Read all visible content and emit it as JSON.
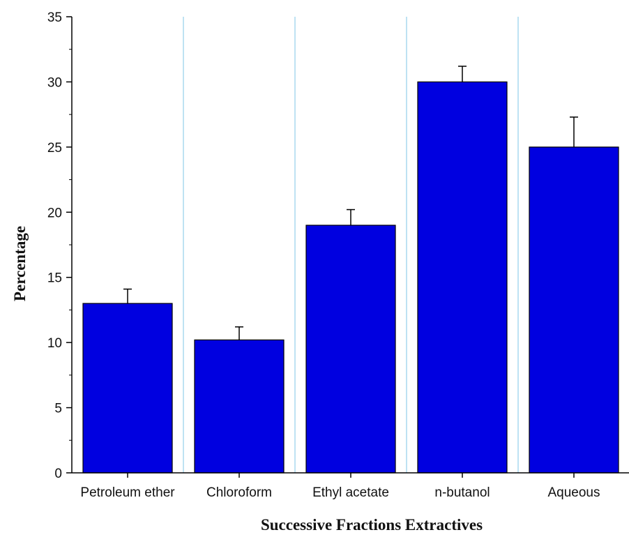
{
  "chart_data": {
    "type": "bar",
    "title": "",
    "xlabel": "Successive Fractions Extractives",
    "ylabel": "Percentage",
    "categories": [
      "Petroleum ether",
      "Chloroform",
      "Ethyl acetate",
      "n-butanol",
      "Aqueous"
    ],
    "series": [
      {
        "values": [
          13,
          10.2,
          19,
          30,
          25
        ],
        "error_plus": [
          1.1,
          1.0,
          1.2,
          1.2,
          2.3
        ]
      }
    ],
    "ylim": [
      0,
      35
    ],
    "yticks": [
      "0",
      "5",
      "10",
      "15",
      "20",
      "25",
      "30",
      "35"
    ],
    "grid": "vertical separators between categories",
    "legend": "none",
    "colors": {
      "bar": "#0000e0",
      "bar_edge": "#000000",
      "separator": "#a9d9ef",
      "axis": "#000000"
    }
  }
}
